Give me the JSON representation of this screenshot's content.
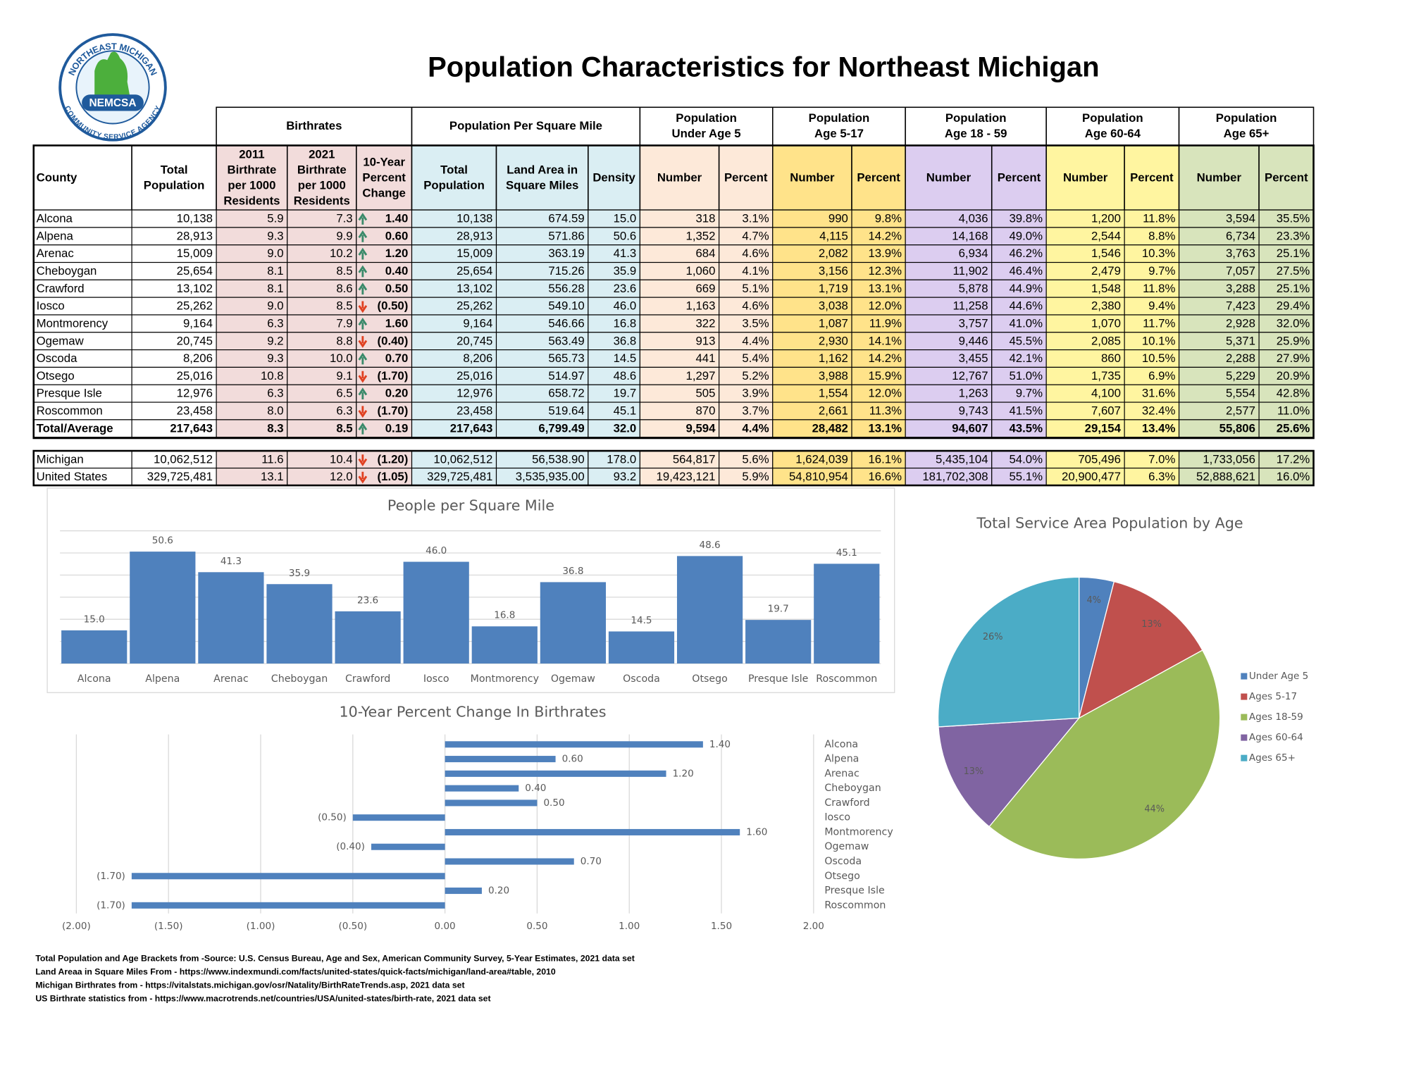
{
  "title": "Population Characteristics for Northeast Michigan",
  "logo": {
    "top": "NORTHEAST MICHIGAN",
    "bottom": "COMMUNITY SERVICE AGENCY",
    "badge": "NEMCSA"
  },
  "table": {
    "groups": [
      [
        "Birthrates"
      ],
      [
        "Population Per Square Mile"
      ],
      [
        "Population",
        "Under Age 5"
      ],
      [
        "Population",
        "Age 5-17"
      ],
      [
        "Population",
        "Age 18 - 59"
      ],
      [
        "Population",
        "Age 60-64"
      ],
      [
        "Population",
        "Age 65+"
      ]
    ],
    "columns": [
      [
        "County"
      ],
      [
        "Total",
        "Population"
      ],
      [
        "2011",
        "Birthrate",
        "per 1000",
        "Residents"
      ],
      [
        "2021",
        "Birthrate",
        "per 1000",
        "Residents"
      ],
      [
        "10-Year",
        "Percent",
        "Change"
      ],
      [
        "Total",
        "Population"
      ],
      [
        "Land Area in",
        "Square Miles"
      ],
      [
        "Density"
      ],
      [
        "Number"
      ],
      [
        "Percent"
      ],
      [
        "Number"
      ],
      [
        "Percent"
      ],
      [
        "Number"
      ],
      [
        "Percent"
      ],
      [
        "Number"
      ],
      [
        "Percent"
      ],
      [
        "Number"
      ],
      [
        "Percent"
      ]
    ],
    "rows": [
      [
        "Alcona",
        "10,138",
        "5.9",
        "7.3",
        "1.40",
        "10,138",
        "674.59",
        "15.0",
        "318",
        "3.1%",
        "990",
        "9.8%",
        "4,036",
        "39.8%",
        "1,200",
        "11.8%",
        "3,594",
        "35.5%"
      ],
      [
        "Alpena",
        "28,913",
        "9.3",
        "9.9",
        "0.60",
        "28,913",
        "571.86",
        "50.6",
        "1,352",
        "4.7%",
        "4,115",
        "14.2%",
        "14,168",
        "49.0%",
        "2,544",
        "8.8%",
        "6,734",
        "23.3%"
      ],
      [
        "Arenac",
        "15,009",
        "9.0",
        "10.2",
        "1.20",
        "15,009",
        "363.19",
        "41.3",
        "684",
        "4.6%",
        "2,082",
        "13.9%",
        "6,934",
        "46.2%",
        "1,546",
        "10.3%",
        "3,763",
        "25.1%"
      ],
      [
        "Cheboygan",
        "25,654",
        "8.1",
        "8.5",
        "0.40",
        "25,654",
        "715.26",
        "35.9",
        "1,060",
        "4.1%",
        "3,156",
        "12.3%",
        "11,902",
        "46.4%",
        "2,479",
        "9.7%",
        "7,057",
        "27.5%"
      ],
      [
        "Crawford",
        "13,102",
        "8.1",
        "8.6",
        "0.50",
        "13,102",
        "556.28",
        "23.6",
        "669",
        "5.1%",
        "1,719",
        "13.1%",
        "5,878",
        "44.9%",
        "1,548",
        "11.8%",
        "3,288",
        "25.1%"
      ],
      [
        "Iosco",
        "25,262",
        "9.0",
        "8.5",
        "(0.50)",
        "25,262",
        "549.10",
        "46.0",
        "1,163",
        "4.6%",
        "3,038",
        "12.0%",
        "11,258",
        "44.6%",
        "2,380",
        "9.4%",
        "7,423",
        "29.4%"
      ],
      [
        "Montmorency",
        "9,164",
        "6.3",
        "7.9",
        "1.60",
        "9,164",
        "546.66",
        "16.8",
        "322",
        "3.5%",
        "1,087",
        "11.9%",
        "3,757",
        "41.0%",
        "1,070",
        "11.7%",
        "2,928",
        "32.0%"
      ],
      [
        "Ogemaw",
        "20,745",
        "9.2",
        "8.8",
        "(0.40)",
        "20,745",
        "563.49",
        "36.8",
        "913",
        "4.4%",
        "2,930",
        "14.1%",
        "9,446",
        "45.5%",
        "2,085",
        "10.1%",
        "5,371",
        "25.9%"
      ],
      [
        "Oscoda",
        "8,206",
        "9.3",
        "10.0",
        "0.70",
        "8,206",
        "565.73",
        "14.5",
        "441",
        "5.4%",
        "1,162",
        "14.2%",
        "3,455",
        "42.1%",
        "860",
        "10.5%",
        "2,288",
        "27.9%"
      ],
      [
        "Otsego",
        "25,016",
        "10.8",
        "9.1",
        "(1.70)",
        "25,016",
        "514.97",
        "48.6",
        "1,297",
        "5.2%",
        "3,988",
        "15.9%",
        "12,767",
        "51.0%",
        "1,735",
        "6.9%",
        "5,229",
        "20.9%"
      ],
      [
        "Presque Isle",
        "12,976",
        "6.3",
        "6.5",
        "0.20",
        "12,976",
        "658.72",
        "19.7",
        "505",
        "3.9%",
        "1,554",
        "12.0%",
        "1,263",
        "9.7%",
        "4,100",
        "31.6%",
        "5,554",
        "42.8%"
      ],
      [
        "Roscommon",
        "23,458",
        "8.0",
        "6.3",
        "(1.70)",
        "23,458",
        "519.64",
        "45.1",
        "870",
        "3.7%",
        "2,661",
        "11.3%",
        "9,743",
        "41.5%",
        "7,607",
        "32.4%",
        "2,577",
        "11.0%"
      ]
    ],
    "total": [
      "Total/Average",
      "217,643",
      "8.3",
      "8.5",
      "0.19",
      "217,643",
      "6,799.49",
      "32.0",
      "9,594",
      "4.4%",
      "28,482",
      "13.1%",
      "94,607",
      "43.5%",
      "29,154",
      "13.4%",
      "55,806",
      "25.6%"
    ],
    "comparison": [
      [
        "Michigan",
        "10,062,512",
        "11.6",
        "10.4",
        "(1.20)",
        "10,062,512",
        "56,538.90",
        "178.0",
        "564,817",
        "5.6%",
        "1,624,039",
        "16.1%",
        "5,435,104",
        "54.0%",
        "705,496",
        "7.0%",
        "1,733,056",
        "17.2%"
      ],
      [
        "United States",
        "329,725,481",
        "13.1",
        "12.0",
        "(1.05)",
        "329,725,481",
        "3,535,935.00",
        "93.2",
        "19,423,121",
        "5.9%",
        "54,810,954",
        "16.6%",
        "181,702,308",
        "55.1%",
        "20,900,477",
        "6.3%",
        "52,888,621",
        "16.0%"
      ]
    ]
  },
  "chart_data": [
    {
      "type": "bar",
      "title": "People per Square Mile",
      "categories": [
        "Alcona",
        "Alpena",
        "Arenac",
        "Cheboygan",
        "Crawford",
        "Iosco",
        "Montmorency",
        "Ogemaw",
        "Oscoda",
        "Otsego",
        "Presque Isle",
        "Roscommon"
      ],
      "values": [
        15.0,
        50.6,
        41.3,
        35.9,
        23.6,
        46.0,
        16.8,
        36.8,
        14.5,
        48.6,
        19.7,
        45.1
      ],
      "value_labels": [
        "15.0",
        "50.6",
        "41.3",
        "35.9",
        "23.6",
        "46.0",
        "16.8",
        "36.8",
        "14.5",
        "48.6",
        "19.7",
        "45.1"
      ],
      "color": "#4f81bd",
      "ylim": [
        0,
        60
      ],
      "yticks": [
        0,
        10,
        20,
        30,
        40,
        50,
        60
      ],
      "grid": true
    },
    {
      "type": "hbar",
      "title": "10-Year Percent Change In Birthrates",
      "categories": [
        "Alcona",
        "Alpena",
        "Arenac",
        "Cheboygan",
        "Crawford",
        "Iosco",
        "Montmorency",
        "Ogemaw",
        "Oscoda",
        "Otsego",
        "Presque Isle",
        "Roscommon"
      ],
      "values": [
        1.4,
        0.6,
        1.2,
        0.4,
        0.5,
        -0.5,
        1.6,
        -0.4,
        0.7,
        -1.7,
        0.2,
        -1.7
      ],
      "value_labels": [
        "1.40",
        "0.60",
        "1.20",
        "0.40",
        "0.50",
        "(0.50)",
        "1.60",
        "(0.40)",
        "0.70",
        "(1.70)",
        "0.20",
        "(1.70)"
      ],
      "color": "#4f81bd",
      "negative_color": "#c00000",
      "xlim": [
        -2,
        2
      ],
      "xticks": [
        {
          "value": -2,
          "label": "(2.00)"
        },
        {
          "value": -1.5,
          "label": "(1.50)"
        },
        {
          "value": -1,
          "label": "(1.00)"
        },
        {
          "value": -0.5,
          "label": "(0.50)"
        },
        {
          "value": 0,
          "label": "0.00"
        },
        {
          "value": 0.5,
          "label": "0.50"
        },
        {
          "value": 1,
          "label": "1.00"
        },
        {
          "value": 1.5,
          "label": "1.50"
        },
        {
          "value": 2,
          "label": "2.00"
        }
      ],
      "grid": true
    },
    {
      "type": "pie",
      "title": "Total Service Area Population by Age",
      "categories": [
        "Under Age 5",
        "Ages 5-17",
        "Ages 18-59",
        "Ages 60-64",
        "Ages 65+"
      ],
      "values": [
        4,
        13,
        44,
        13,
        26
      ],
      "value_labels": [
        "4%",
        "13%",
        "44%",
        "13%",
        "26%"
      ],
      "colors": [
        "#4f81bd",
        "#c0504d",
        "#9bbb59",
        "#8064a2",
        "#4bacc6"
      ],
      "legend": "right"
    }
  ],
  "sources": [
    "Total Population and Age Brackets from -Source: U.S. Census Bureau, Age and Sex, American Community Survey, 5-Year Estimates, 2021 data set",
    "Land Areaa in Square Miles From - https://www.indexmundi.com/facts/united-states/quick-facts/michigan/land-area#table, 2010",
    "Michigan Birthrates from - https://vitalstats.michigan.gov/osr/Natality/BirthRateTrends.asp, 2021 data set",
    "US Birthrate statistics from - https://www.macrotrends.net/countries/USA/united-states/birth-rate, 2021 data set"
  ]
}
